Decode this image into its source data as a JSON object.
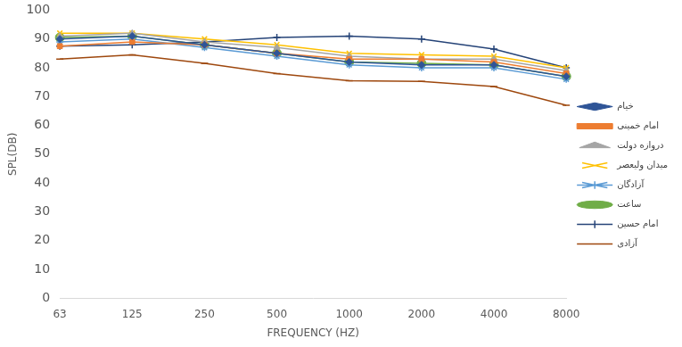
{
  "chart_data": {
    "type": "line",
    "x_label": "FREQUENCY (HZ)",
    "y_label": "SPL(DB)",
    "categories": [
      "63",
      "125",
      "250",
      "500",
      "1000",
      "2000",
      "4000",
      "8000"
    ],
    "ylim": [
      0,
      100
    ],
    "yticks": [
      0,
      10,
      20,
      30,
      40,
      50,
      60,
      70,
      80,
      90,
      100
    ],
    "grid": false,
    "legend": "right",
    "series": [
      {
        "name": "خیام",
        "color": "#2f5597",
        "marker": "diamond",
        "values": [
          90,
          91,
          88,
          85,
          82,
          81,
          81,
          77
        ]
      },
      {
        "name": "امام خمینی",
        "color": "#ed7d31",
        "marker": "square",
        "values": [
          87.5,
          89,
          88,
          85,
          83,
          83,
          82,
          78
        ]
      },
      {
        "name": "دروازه دولت",
        "color": "#a5a5a5",
        "marker": "triangle",
        "values": [
          91,
          92,
          89,
          87,
          84,
          83,
          83,
          79
        ]
      },
      {
        "name": "میدان ولیعصر",
        "color": "#ffc000",
        "marker": "x",
        "values": [
          92,
          92,
          90,
          88,
          85,
          84.5,
          84,
          80
        ]
      },
      {
        "name": "آزادگان",
        "color": "#5b9bd5",
        "marker": "star",
        "values": [
          89,
          90,
          87,
          84,
          81,
          80,
          80,
          76
        ]
      },
      {
        "name": "ساعت",
        "color": "#70ad47",
        "marker": "circle",
        "values": [
          90.5,
          91,
          88,
          85,
          82,
          81.5,
          81,
          77
        ]
      },
      {
        "name": "امام حسین",
        "color": "#264478",
        "marker": "plus",
        "values": [
          87.5,
          88,
          89,
          90.5,
          91,
          90,
          86.5,
          80
        ]
      },
      {
        "name": "آزادی",
        "color": "#9e480e",
        "marker": "dash",
        "values": [
          83,
          84.5,
          81.5,
          78,
          75.5,
          75.3,
          73.5,
          67
        ]
      }
    ]
  }
}
